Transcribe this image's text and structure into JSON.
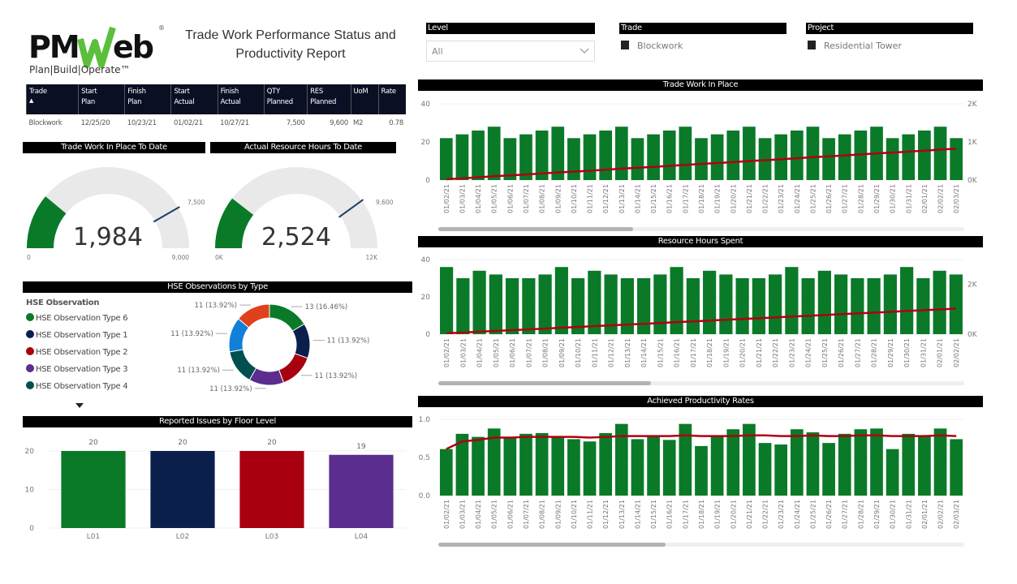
{
  "logo": {
    "text": "PMWeb",
    "tagline": "Plan|Build|Operate"
  },
  "title_line1": "Trade Work Performance Status and",
  "title_line2": "Productivity Report",
  "filters": {
    "level": {
      "label": "Level",
      "value": "All"
    },
    "trade": {
      "label": "Trade",
      "value": "Blockwork"
    },
    "project": {
      "label": "Project",
      "value": "Residential Tower"
    }
  },
  "table": {
    "headers": [
      [
        "Trade",
        ""
      ],
      [
        "Start",
        "Plan"
      ],
      [
        "Finish",
        "Plan"
      ],
      [
        "Start",
        "Actual"
      ],
      [
        "Finish",
        "Actual"
      ],
      [
        "QTY",
        "Planned"
      ],
      [
        "RES",
        "Planned"
      ],
      [
        "UoM",
        ""
      ],
      [
        "Rate",
        ""
      ]
    ],
    "rows": [
      [
        "Blockwork",
        "12/25/20",
        "10/23/21",
        "01/02/21",
        "10/27/21",
        "7,500",
        "9,600",
        "M2",
        "0.78"
      ]
    ]
  },
  "gauges": [
    {
      "title": "Trade Work In Place To Date",
      "value": 1984,
      "value_label": "1,984",
      "min_label": "0",
      "max": 9000,
      "max_label": "9,000",
      "target": 7500,
      "target_label": "7,500"
    },
    {
      "title": "Actual Resource Hours To Date",
      "value": 2524,
      "value_label": "2,524",
      "min_label": "0K",
      "max": 12000,
      "max_label": "12K",
      "target": 9600,
      "target_label": "9,600"
    }
  ],
  "hse": {
    "title": "HSE Observations by Type",
    "legend_title": "HSE Observation",
    "legend": [
      {
        "name": "HSE Observation Type 6",
        "color": "#0a7a28"
      },
      {
        "name": "HSE Observation Type 1",
        "color": "#0b1f4d"
      },
      {
        "name": "HSE Observation Type 2",
        "color": "#a8000f"
      },
      {
        "name": "HSE Observation Type 3",
        "color": "#5b2d8e"
      },
      {
        "name": "HSE Observation Type 4",
        "color": "#00504f"
      }
    ],
    "slices": [
      {
        "value": 13,
        "label": "13 (16.46%)",
        "color": "#0a7a28"
      },
      {
        "value": 11,
        "label": "11 (13.92%)",
        "color": "#0b1f4d"
      },
      {
        "value": 11,
        "label": "11 (13.92%)",
        "color": "#a8000f"
      },
      {
        "value": 11,
        "label": "11 (13.92%)",
        "color": "#5b2d8e"
      },
      {
        "value": 11,
        "label": "11 (13.92%)",
        "color": "#00504f"
      },
      {
        "value": 11,
        "label": "11 (13.92%)",
        "color": "#1180d8"
      },
      {
        "value": 11,
        "label": "11 (13.92%)",
        "color": "#e0401c"
      }
    ]
  },
  "chart_data": [
    {
      "type": "bar",
      "title": "Reported Issues by Floor Level",
      "categories": [
        "L01",
        "L02",
        "L03",
        "L04"
      ],
      "values": [
        20,
        20,
        20,
        19
      ],
      "colors": [
        "#0a7a28",
        "#0b1f4d",
        "#a8000f",
        "#5b2d8e"
      ],
      "ylim": [
        0,
        20
      ],
      "yticks": [
        0,
        10,
        20
      ]
    },
    {
      "type": "bar+line",
      "title": "Trade Work In Place",
      "categories": [
        "01/02/21",
        "01/03/21",
        "01/04/21",
        "01/05/21",
        "01/06/21",
        "01/07/21",
        "01/08/21",
        "01/09/21",
        "01/10/21",
        "01/11/21",
        "01/12/21",
        "01/13/21",
        "01/14/21",
        "01/15/21",
        "01/16/21",
        "01/17/21",
        "01/18/21",
        "01/19/21",
        "01/20/21",
        "01/21/21",
        "01/22/21",
        "01/23/21",
        "01/24/21",
        "01/25/21",
        "01/26/21",
        "01/27/21",
        "01/28/21",
        "01/29/21",
        "01/30/21",
        "01/31/21",
        "02/01/21",
        "02/02/21",
        "02/03/21"
      ],
      "bars": [
        22,
        24,
        26,
        28,
        22,
        24,
        26,
        28,
        22,
        24,
        26,
        28,
        22,
        24,
        26,
        28,
        22,
        24,
        26,
        28,
        22,
        24,
        26,
        28,
        22,
        24,
        26,
        28,
        22,
        24,
        26,
        28,
        22
      ],
      "line": [
        22,
        46,
        72,
        100,
        122,
        146,
        172,
        200,
        222,
        246,
        272,
        300,
        322,
        346,
        372,
        400,
        422,
        446,
        472,
        500,
        522,
        546,
        572,
        600,
        622,
        646,
        672,
        700,
        722,
        746,
        772,
        800,
        822
      ],
      "ylim": [
        0,
        40
      ],
      "yticks": [
        "0",
        "20",
        "40"
      ],
      "y2lim": [
        0,
        2000
      ],
      "y2ticks": [
        "0K",
        "1K",
        "2K"
      ],
      "bar_color": "#0a7a28",
      "line_color": "#b0000f"
    },
    {
      "type": "bar+line",
      "title": "Resource Hours Spent",
      "categories": [
        "01/02/21",
        "01/03/21",
        "01/04/21",
        "01/05/21",
        "01/06/21",
        "01/07/21",
        "01/08/21",
        "01/09/21",
        "01/10/21",
        "01/11/21",
        "01/12/21",
        "01/13/21",
        "01/14/21",
        "01/15/21",
        "01/16/21",
        "01/17/21",
        "01/18/21",
        "01/19/21",
        "01/20/21",
        "01/21/21",
        "01/22/21",
        "01/23/21",
        "01/24/21",
        "01/25/21",
        "01/26/21",
        "01/27/21",
        "01/28/21",
        "01/29/21",
        "01/30/21",
        "01/31/21",
        "02/01/21",
        "02/02/21"
      ],
      "bars": [
        36,
        30,
        34,
        32,
        30,
        30,
        32,
        36,
        30,
        34,
        32,
        30,
        30,
        32,
        36,
        30,
        34,
        32,
        30,
        30,
        32,
        36,
        30,
        34,
        32,
        30,
        30,
        32,
        36,
        30,
        34,
        32
      ],
      "line": [
        36,
        66,
        100,
        132,
        162,
        192,
        224,
        260,
        290,
        324,
        356,
        386,
        416,
        448,
        484,
        514,
        548,
        580,
        610,
        640,
        672,
        708,
        738,
        772,
        804,
        834,
        864,
        896,
        932,
        962,
        996,
        1028
      ],
      "ylim": [
        0,
        40
      ],
      "yticks": [
        "0",
        "20",
        "40"
      ],
      "y2lim": [
        0,
        3000
      ],
      "y2ticks": [
        "0K",
        "2K"
      ],
      "y2tickvals": [
        0,
        2000
      ],
      "bar_color": "#0a7a28",
      "line_color": "#b0000f"
    },
    {
      "type": "bar+line",
      "title": "Achieved Productivity Rates",
      "categories": [
        "01/02/21",
        "01/03/21",
        "01/04/21",
        "01/05/21",
        "01/06/21",
        "01/07/21",
        "01/08/21",
        "01/09/21",
        "01/10/21",
        "01/11/21",
        "01/12/21",
        "01/13/21",
        "01/14/21",
        "01/15/21",
        "01/16/21",
        "01/17/21",
        "01/18/21",
        "01/19/21",
        "01/20/21",
        "01/21/21",
        "01/22/21",
        "01/23/21",
        "01/24/21",
        "01/25/21",
        "01/26/21",
        "01/27/21",
        "01/28/21",
        "01/29/21",
        "01/30/21",
        "01/31/21",
        "02/01/21",
        "02/02/21",
        "02/03/21"
      ],
      "bars": [
        0.61,
        0.81,
        0.77,
        0.88,
        0.75,
        0.81,
        0.82,
        0.78,
        0.74,
        0.71,
        0.82,
        0.94,
        0.74,
        0.77,
        0.73,
        0.94,
        0.65,
        0.78,
        0.87,
        0.94,
        0.69,
        0.67,
        0.87,
        0.83,
        0.69,
        0.81,
        0.87,
        0.88,
        0.61,
        0.81,
        0.78,
        0.88,
        0.74
      ],
      "line": [
        0.61,
        0.71,
        0.73,
        0.76,
        0.76,
        0.77,
        0.77,
        0.77,
        0.77,
        0.76,
        0.77,
        0.78,
        0.78,
        0.78,
        0.78,
        0.79,
        0.78,
        0.78,
        0.78,
        0.79,
        0.79,
        0.78,
        0.78,
        0.79,
        0.78,
        0.78,
        0.79,
        0.79,
        0.78,
        0.78,
        0.78,
        0.79,
        0.78
      ],
      "ylim": [
        0,
        1
      ],
      "yticks": [
        "0.0",
        "0.5",
        "1.0"
      ],
      "bar_color": "#0a7a28",
      "line_color": "#b0000f"
    }
  ]
}
